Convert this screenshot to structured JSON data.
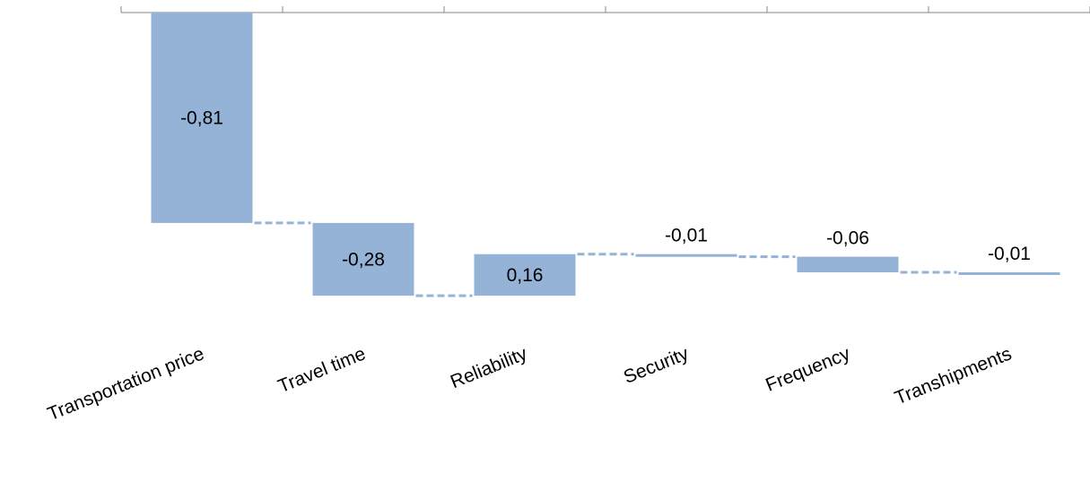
{
  "chart_data": {
    "type": "bar",
    "subtype": "waterfall",
    "categories": [
      "Transportation price",
      "Travel time",
      "Reliability",
      "Security",
      "Frequency",
      "Transhipments"
    ],
    "values": [
      -0.81,
      -0.28,
      0.16,
      -0.01,
      -0.06,
      -0.01
    ],
    "data_labels": [
      "-0,81",
      "-0,28",
      "0,16",
      "-0,01",
      "-0,06",
      "-0,01"
    ],
    "ylim": [
      -1.15,
      0
    ],
    "axis_position": "top",
    "grid": false,
    "legend": "none",
    "title": "",
    "xlabel": "",
    "ylabel": "",
    "colors": {
      "bar": "#95b3d7",
      "axis": "#868686",
      "text": "#000000"
    }
  }
}
